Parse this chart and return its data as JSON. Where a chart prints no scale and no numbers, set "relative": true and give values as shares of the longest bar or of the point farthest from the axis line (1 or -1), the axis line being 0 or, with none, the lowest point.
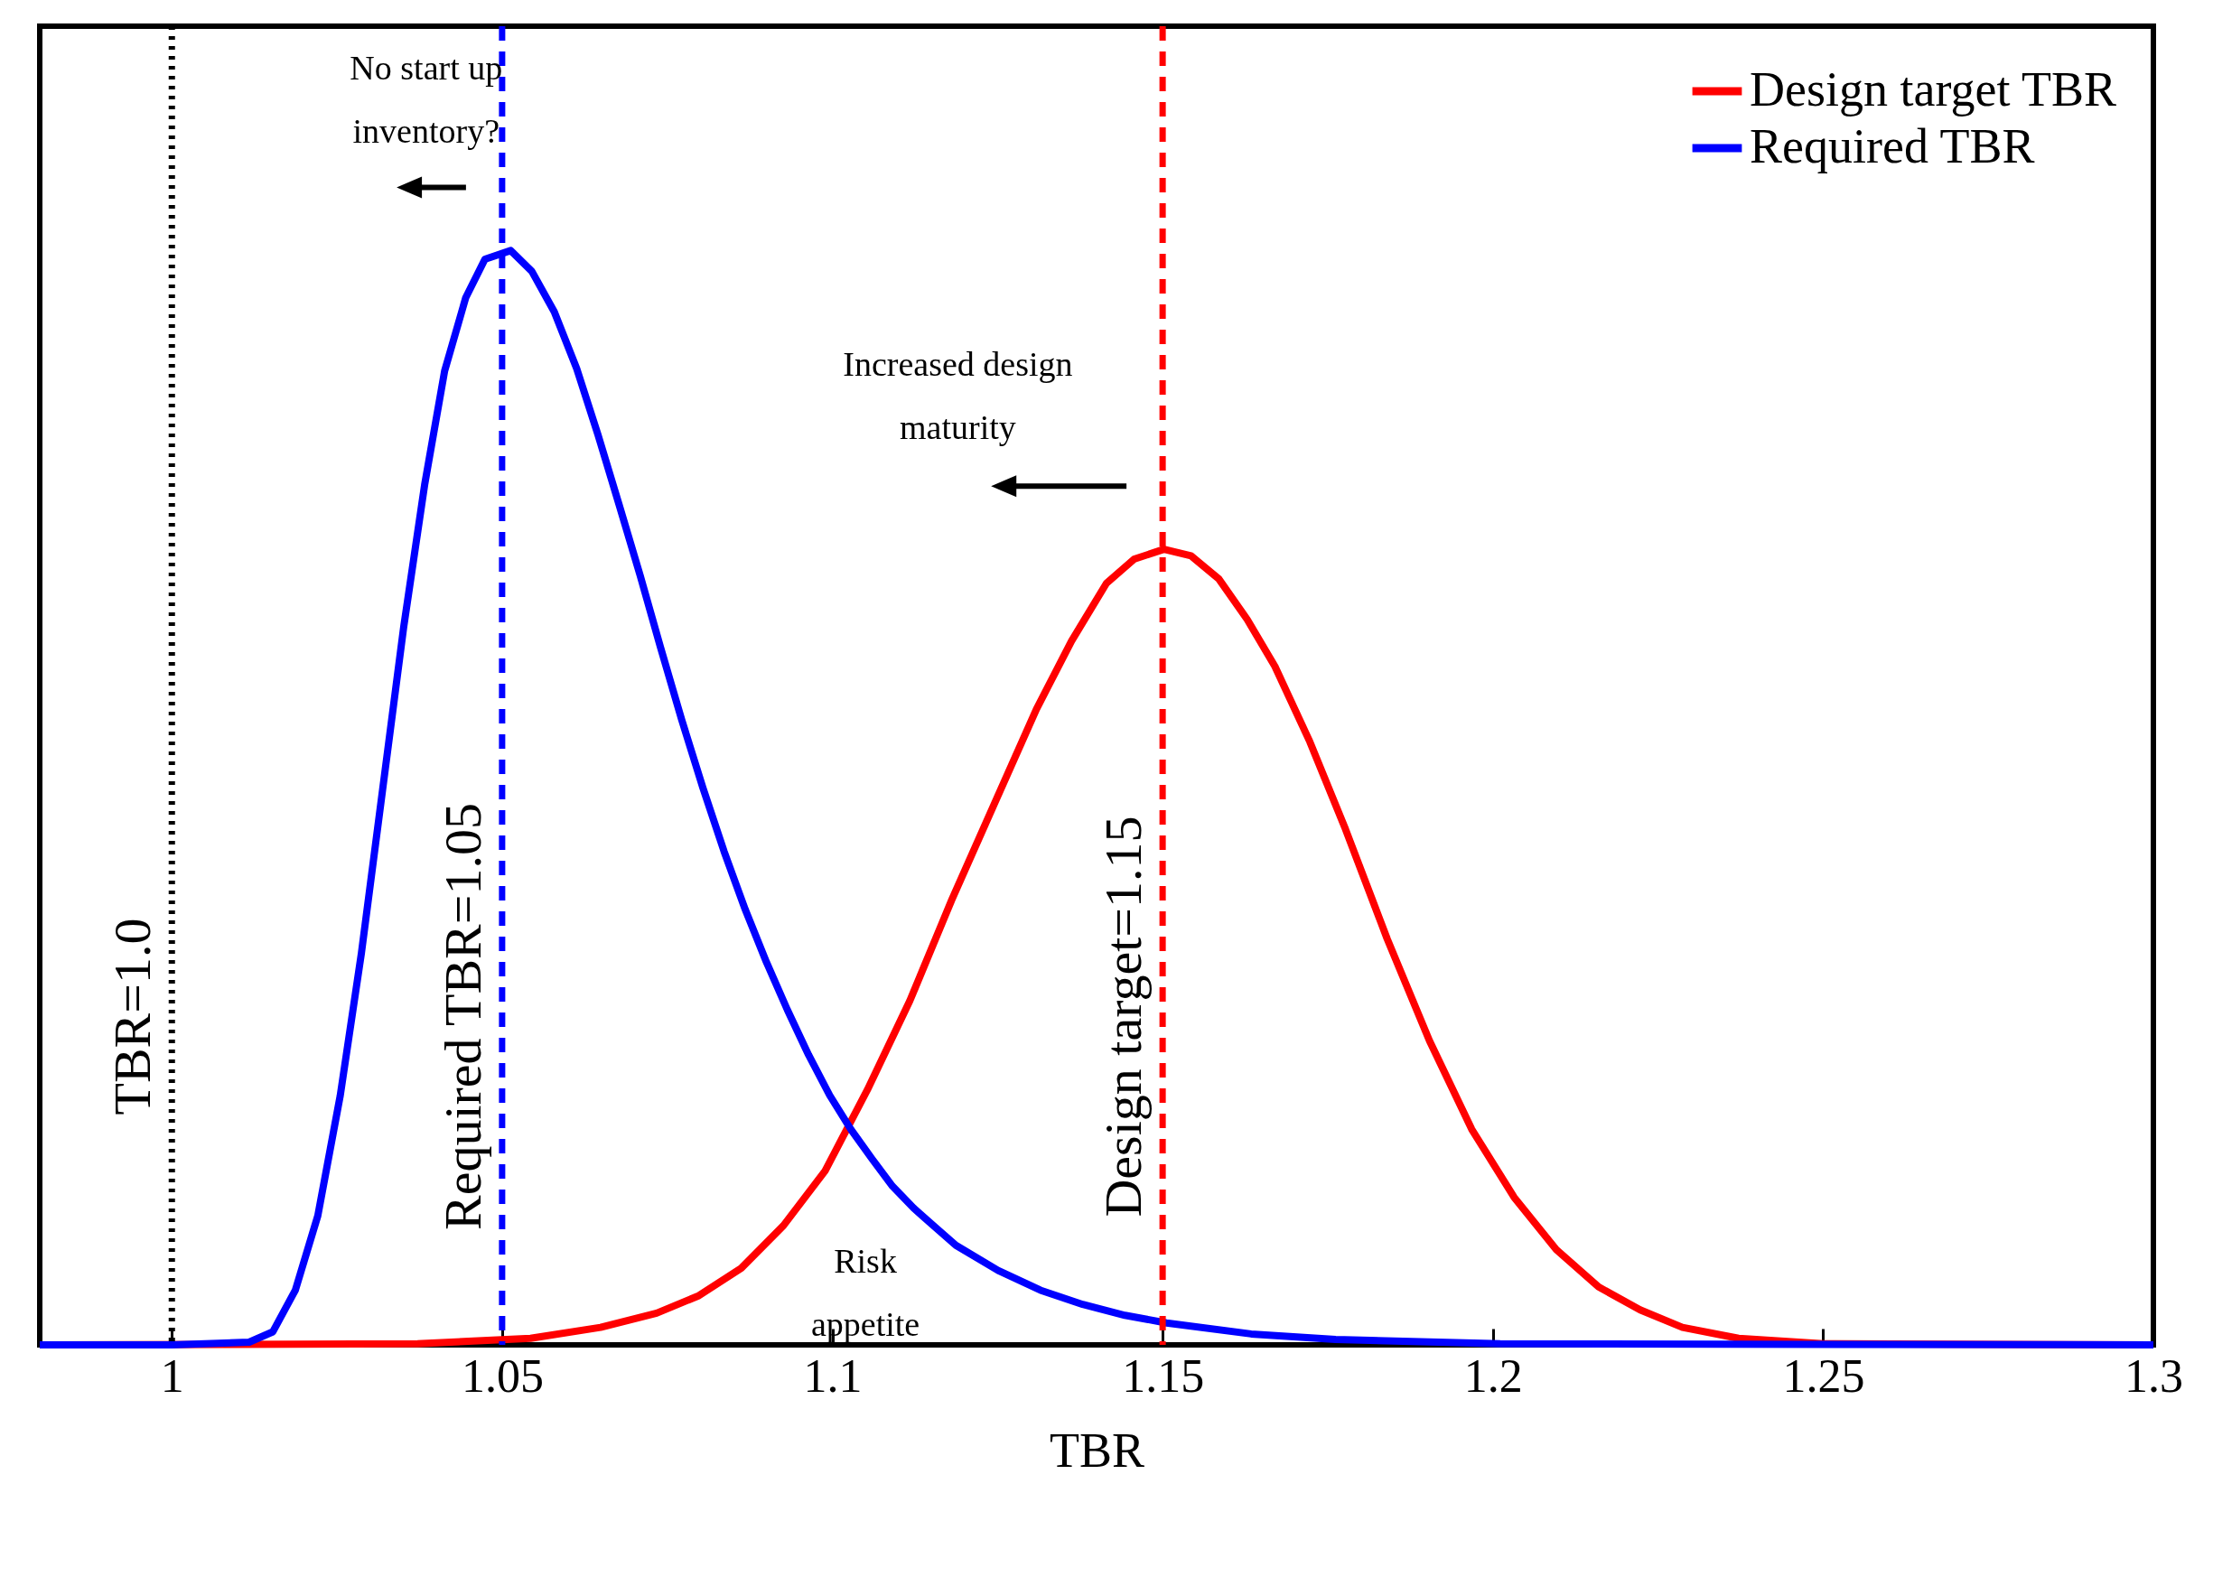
{
  "chart_data": {
    "type": "line",
    "xlabel": "TBR",
    "relative": true,
    "xlim": [
      0.98,
      1.3
    ],
    "xticks": [
      1,
      1.05,
      1.1,
      1.15,
      1.2,
      1.25,
      1.3
    ],
    "tick_labels": "x",
    "grid": false,
    "legend": "top right",
    "marker": "none",
    "line_style": "solid",
    "series": [
      {
        "name": "Design target TBR",
        "color": "#ff0000",
        "x": [
          0.98,
          1.0372,
          1.0543,
          1.0649,
          1.0734,
          1.0798,
          1.0862,
          1.0926,
          1.0989,
          1.1053,
          1.1117,
          1.1181,
          1.1245,
          1.1309,
          1.1362,
          1.1415,
          1.1457,
          1.1502,
          1.1543,
          1.1585,
          1.1628,
          1.167,
          1.1723,
          1.1777,
          1.184,
          1.1904,
          1.1968,
          1.2032,
          1.2096,
          1.216,
          1.2223,
          1.2287,
          1.2372,
          1.25,
          1.3
        ],
        "values": [
          0,
          0.001,
          0.006,
          0.016,
          0.029,
          0.045,
          0.07,
          0.109,
          0.159,
          0.233,
          0.314,
          0.407,
          0.494,
          0.581,
          0.643,
          0.696,
          0.718,
          0.727,
          0.721,
          0.7,
          0.663,
          0.62,
          0.551,
          0.471,
          0.371,
          0.278,
          0.197,
          0.135,
          0.087,
          0.053,
          0.032,
          0.016,
          0.006,
          0.001,
          0
        ]
      },
      {
        "name": "Required TBR",
        "color": "#0000ff",
        "x": [
          0.98,
          1.0,
          1.0117,
          1.0153,
          1.0187,
          1.0221,
          1.0255,
          1.0287,
          1.0319,
          1.0351,
          1.0383,
          1.0413,
          1.0445,
          1.0474,
          1.0513,
          1.0545,
          1.0579,
          1.0613,
          1.0645,
          1.0677,
          1.0709,
          1.074,
          1.0772,
          1.0804,
          1.0836,
          1.0868,
          1.09,
          1.0932,
          1.0964,
          1.0996,
          1.1028,
          1.106,
          1.1091,
          1.1123,
          1.1155,
          1.1187,
          1.1251,
          1.1315,
          1.1379,
          1.1443,
          1.1506,
          1.1634,
          1.1762,
          1.2011,
          1.3
        ],
        "values": [
          0,
          0,
          0.0025,
          0.012,
          0.05,
          0.118,
          0.228,
          0.358,
          0.507,
          0.656,
          0.787,
          0.89,
          0.957,
          0.992,
          1.0,
          0.981,
          0.944,
          0.892,
          0.832,
          0.768,
          0.703,
          0.637,
          0.571,
          0.509,
          0.451,
          0.398,
          0.35,
          0.306,
          0.265,
          0.228,
          0.197,
          0.17,
          0.145,
          0.125,
          0.108,
          0.091,
          0.068,
          0.05,
          0.037,
          0.027,
          0.02,
          0.01,
          0.005,
          0.001,
          0
        ]
      }
    ],
    "ref_lines": [
      {
        "axis": "x",
        "value": 1.0,
        "label": "TBR=1.0",
        "color": "#000000",
        "line_style": "dotted"
      },
      {
        "axis": "x",
        "value": 1.05,
        "label": "Required TBR=1.05",
        "color": "#0000ff",
        "line_style": "dashed"
      },
      {
        "axis": "x",
        "value": 1.15,
        "label": "Design target=1.15",
        "color": "#ff0000",
        "line_style": "dashed"
      }
    ],
    "annotations": [
      "No start up inventory?",
      "Increased design maturity",
      "Risk appetite"
    ]
  }
}
